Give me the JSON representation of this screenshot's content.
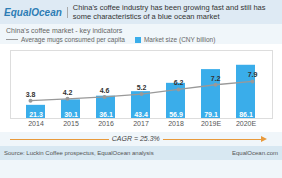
{
  "chart_data": {
    "type": "bar",
    "title": "China's coffee industry has been growing fast and still has some characteristics of a blue ocean market",
    "subtitle": "China's coffee market - key indicators",
    "annotations": [
      "EqualOcean",
      "CAGR = 25.3%",
      "Source: Luckin Coffee prospectus, EqualOcean analysis",
      "EqualOcean.com"
    ],
    "categories": [
      "2014",
      "2015",
      "2016",
      "2017",
      "2018",
      "2019E",
      "2020E"
    ],
    "series": [
      {
        "name": "Average mugs consumed per capita",
        "type": "line",
        "axis": "y2",
        "color": "#999999",
        "marker": "circle",
        "values": [
          3.8,
          4.2,
          4.6,
          5.2,
          6.2,
          7.2,
          7.9
        ]
      },
      {
        "name": "Market size (CNY billion)",
        "type": "bar",
        "color": "#3aadea",
        "values": [
          21.3,
          30.1,
          36.1,
          43.4,
          56.9,
          79.1,
          86.1
        ]
      }
    ],
    "ylim": [
      0,
      110
    ],
    "y2lim": [
      0,
      14.5
    ],
    "tick_labels": "x",
    "grid": false,
    "data_labels": true,
    "legend": "top"
  }
}
